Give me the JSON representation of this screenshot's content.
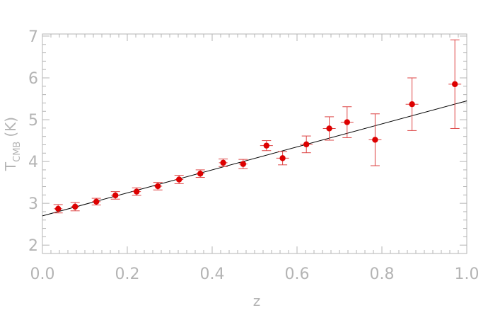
{
  "chart_data": {
    "type": "scatter",
    "xlabel": "z",
    "ylabel": {
      "main": "T",
      "subscript": "CMB",
      "unit": "(K)"
    },
    "xlim": [
      0.0,
      1.0
    ],
    "ylim": [
      1.8,
      7.05
    ],
    "x_ticks": [
      "0.0",
      "0.2",
      "0.4",
      "0.6",
      "0.8",
      "1.0"
    ],
    "x_tick_values": [
      0.0,
      0.2,
      0.4,
      0.6,
      0.8,
      1.0
    ],
    "y_ticks": [
      "2",
      "3",
      "4",
      "5",
      "6",
      "7"
    ],
    "y_tick_values": [
      2,
      3,
      4,
      5,
      6,
      7
    ],
    "grid": false,
    "colors": {
      "points": "#dd0000",
      "errorbars": "#dd4444",
      "fit_line": "#000000",
      "axes": "#b4b4b4"
    },
    "series": [
      {
        "kind": "errorbar-scatter",
        "points": [
          {
            "x": 0.037,
            "y": 2.87,
            "err": 0.1,
            "xerr": 0.01
          },
          {
            "x": 0.077,
            "y": 2.92,
            "err": 0.1,
            "xerr": 0.01
          },
          {
            "x": 0.127,
            "y": 3.04,
            "err": 0.08,
            "xerr": 0.01
          },
          {
            "x": 0.172,
            "y": 3.19,
            "err": 0.09,
            "xerr": 0.01
          },
          {
            "x": 0.222,
            "y": 3.28,
            "err": 0.09,
            "xerr": 0.01
          },
          {
            "x": 0.272,
            "y": 3.41,
            "err": 0.09,
            "xerr": 0.01
          },
          {
            "x": 0.322,
            "y": 3.57,
            "err": 0.1,
            "xerr": 0.01
          },
          {
            "x": 0.372,
            "y": 3.71,
            "err": 0.09,
            "xerr": 0.01
          },
          {
            "x": 0.426,
            "y": 3.97,
            "err": 0.09,
            "xerr": 0.01
          },
          {
            "x": 0.473,
            "y": 3.94,
            "err": 0.11,
            "xerr": 0.01
          },
          {
            "x": 0.528,
            "y": 4.38,
            "err": 0.12,
            "xerr": 0.015
          },
          {
            "x": 0.566,
            "y": 4.08,
            "err": 0.16,
            "xerr": 0.015
          },
          {
            "x": 0.622,
            "y": 4.41,
            "err": 0.2,
            "xerr": 0.015
          },
          {
            "x": 0.676,
            "y": 4.79,
            "err": 0.28,
            "xerr": 0.015
          },
          {
            "x": 0.718,
            "y": 4.94,
            "err": 0.37,
            "xerr": 0.015
          },
          {
            "x": 0.784,
            "y": 4.52,
            "err": 0.62,
            "xerr": 0.015
          },
          {
            "x": 0.871,
            "y": 5.37,
            "err": 0.63,
            "xerr": 0.015
          },
          {
            "x": 0.972,
            "y": 5.85,
            "err": 1.06,
            "xerr": 0.015
          }
        ]
      },
      {
        "kind": "fit-line",
        "x": [
          0.0,
          1.0
        ],
        "y": [
          2.7,
          5.45
        ]
      }
    ]
  }
}
